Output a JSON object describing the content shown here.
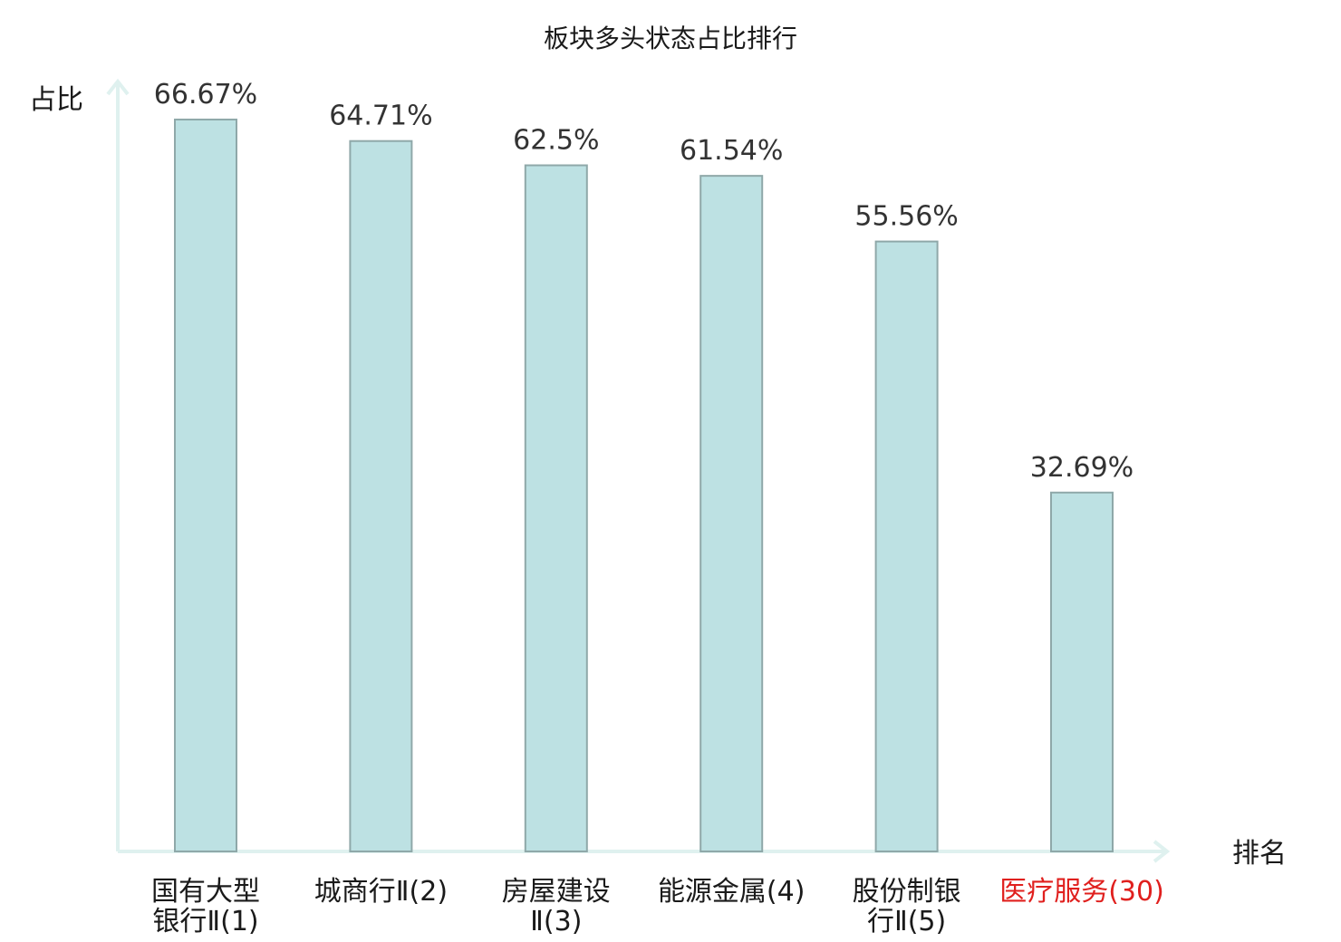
{
  "chart_data": {
    "type": "bar",
    "title": "板块多头状态占比排行",
    "xlabel": "排名",
    "ylabel": "占比",
    "categories": [
      {
        "lines": [
          "国有大型",
          "银行Ⅱ(1)"
        ],
        "highlight": false
      },
      {
        "lines": [
          "城商行Ⅱ(2)"
        ],
        "highlight": false
      },
      {
        "lines": [
          "房屋建设",
          "Ⅱ(3)"
        ],
        "highlight": false
      },
      {
        "lines": [
          "能源金属(4)"
        ],
        "highlight": false
      },
      {
        "lines": [
          "股份制银",
          "行Ⅱ(5)"
        ],
        "highlight": false
      },
      {
        "lines": [
          "医疗服务(30)"
        ],
        "highlight": true
      }
    ],
    "values": [
      66.67,
      64.71,
      62.5,
      61.54,
      55.56,
      32.69
    ],
    "value_labels": [
      "66.67%",
      "64.71%",
      "62.5%",
      "61.54%",
      "55.56%",
      "32.69%"
    ],
    "unit": "%",
    "ylim": [
      0,
      70
    ],
    "grid": false,
    "colors": {
      "bar_fill": "#bde1e3",
      "bar_stroke": "#8fa8a9",
      "axis": "#dff1ef",
      "highlight_label": "#e0201e"
    }
  }
}
